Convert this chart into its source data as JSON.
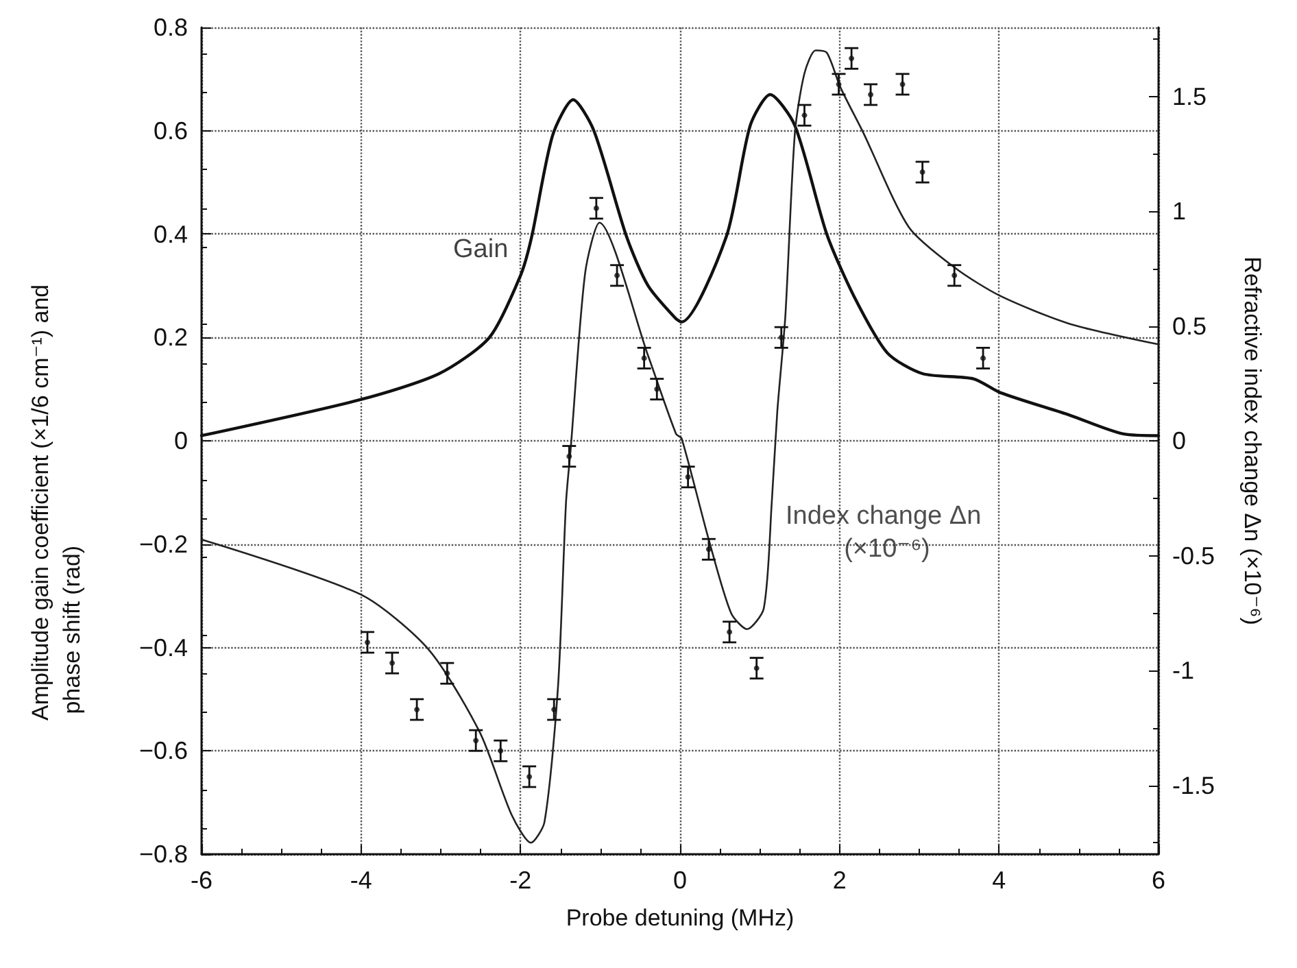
{
  "chart_data": {
    "type": "line",
    "xlabel": "Probe detuning (MHz)",
    "ylabel": "Amplitude gain coefficient (×1/6 cm⁻¹) and phase shift (rad)",
    "y2label": "Refractive index change Δn (×10⁻⁶)",
    "xlim": [
      -6,
      6
    ],
    "xticks": [
      -6,
      -4,
      -2,
      0,
      2,
      4,
      6
    ],
    "ylim": [
      -0.8,
      0.8
    ],
    "yticks": [
      -0.8,
      -0.6,
      -0.4,
      -0.2,
      0,
      0.2,
      0.4,
      0.6,
      0.8
    ],
    "y2lim": [
      -1.8,
      1.8
    ],
    "y2ticks": [
      -1.5,
      -1,
      -0.5,
      0,
      0.5,
      1,
      1.5
    ],
    "grid": true,
    "legend": false,
    "series": [
      {
        "name": "Gain",
        "color": "#111111",
        "marker": "none",
        "x": [
          -6,
          -4,
          -3.02,
          -2.39,
          -2.0,
          -1.86,
          -1.6,
          -1.34,
          -1.08,
          -0.67,
          -0.4,
          -0.05,
          0.02,
          0.58,
          0.88,
          1.13,
          1.44,
          1.84,
          2.18,
          2.6,
          3.04,
          3.68,
          4.02,
          4.88,
          5.57,
          6
        ],
        "values": [
          0.01,
          0.08,
          0.13,
          0.2,
          0.32,
          0.395,
          0.59,
          0.66,
          0.6,
          0.395,
          0.3,
          0.236,
          0.23,
          0.395,
          0.61,
          0.67,
          0.61,
          0.4,
          0.28,
          0.17,
          0.13,
          0.12,
          0.093,
          0.05,
          0.013,
          0.01
        ]
      },
      {
        "name": "Index change Δn (×10⁻⁶)",
        "axis": "y2",
        "color": "#222222",
        "marker": "none",
        "x": [
          -6,
          -4,
          -3.15,
          -2.51,
          -2.11,
          -1.87,
          -1.7,
          -1.53,
          -1.43,
          -1.37,
          -1.19,
          -1.01,
          -0.4,
          -0.05,
          0.02,
          0.36,
          0.64,
          0.84,
          1.05,
          1.15,
          1.22,
          1.32,
          1.44,
          1.56,
          1.7,
          1.84,
          2.01,
          2.3,
          2.87,
          3.46,
          4.02,
          4.88,
          6
        ],
        "values": [
          -0.43,
          -0.67,
          -0.91,
          -1.27,
          -1.63,
          -1.75,
          -1.66,
          -1.07,
          -0.27,
          -0.03,
          0.73,
          0.95,
          0.37,
          0.03,
          0.01,
          -0.43,
          -0.75,
          -0.82,
          -0.73,
          -0.27,
          0.13,
          0.54,
          1.34,
          1.6,
          1.7,
          1.69,
          1.54,
          1.34,
          0.93,
          0.75,
          0.63,
          0.51,
          0.42
        ]
      },
      {
        "type": "scatter",
        "color": "#111111",
        "marker": "circle",
        "x": [
          -3.92,
          -3.61,
          -3.3,
          -2.92,
          -2.56,
          -2.25,
          -1.89,
          -1.58,
          -1.39,
          -1.05,
          -0.79,
          -0.45,
          -0.29,
          0.1,
          0.36,
          0.62,
          0.96,
          1.27,
          1.56,
          1.99,
          2.15,
          2.39,
          2.79,
          3.04,
          3.44,
          3.8
        ],
        "values": [
          -0.39,
          -0.43,
          -0.52,
          -0.45,
          -0.58,
          -0.6,
          -0.65,
          -0.52,
          -0.03,
          0.45,
          0.32,
          0.16,
          0.1,
          -0.07,
          -0.21,
          -0.37,
          -0.44,
          0.2,
          0.63,
          0.69,
          0.74,
          0.67,
          0.69,
          0.52,
          0.32,
          0.16
        ],
        "errors": [
          0.02,
          0.02,
          0.02,
          0.02,
          0.02,
          0.02,
          0.02,
          0.02,
          0.02,
          0.02,
          0.02,
          0.02,
          0.02,
          0.02,
          0.02,
          0.02,
          0.02,
          0.02,
          0.02,
          0.02,
          0.02,
          0.02,
          0.02,
          0.02,
          0.02,
          0.02
        ]
      }
    ]
  }
}
